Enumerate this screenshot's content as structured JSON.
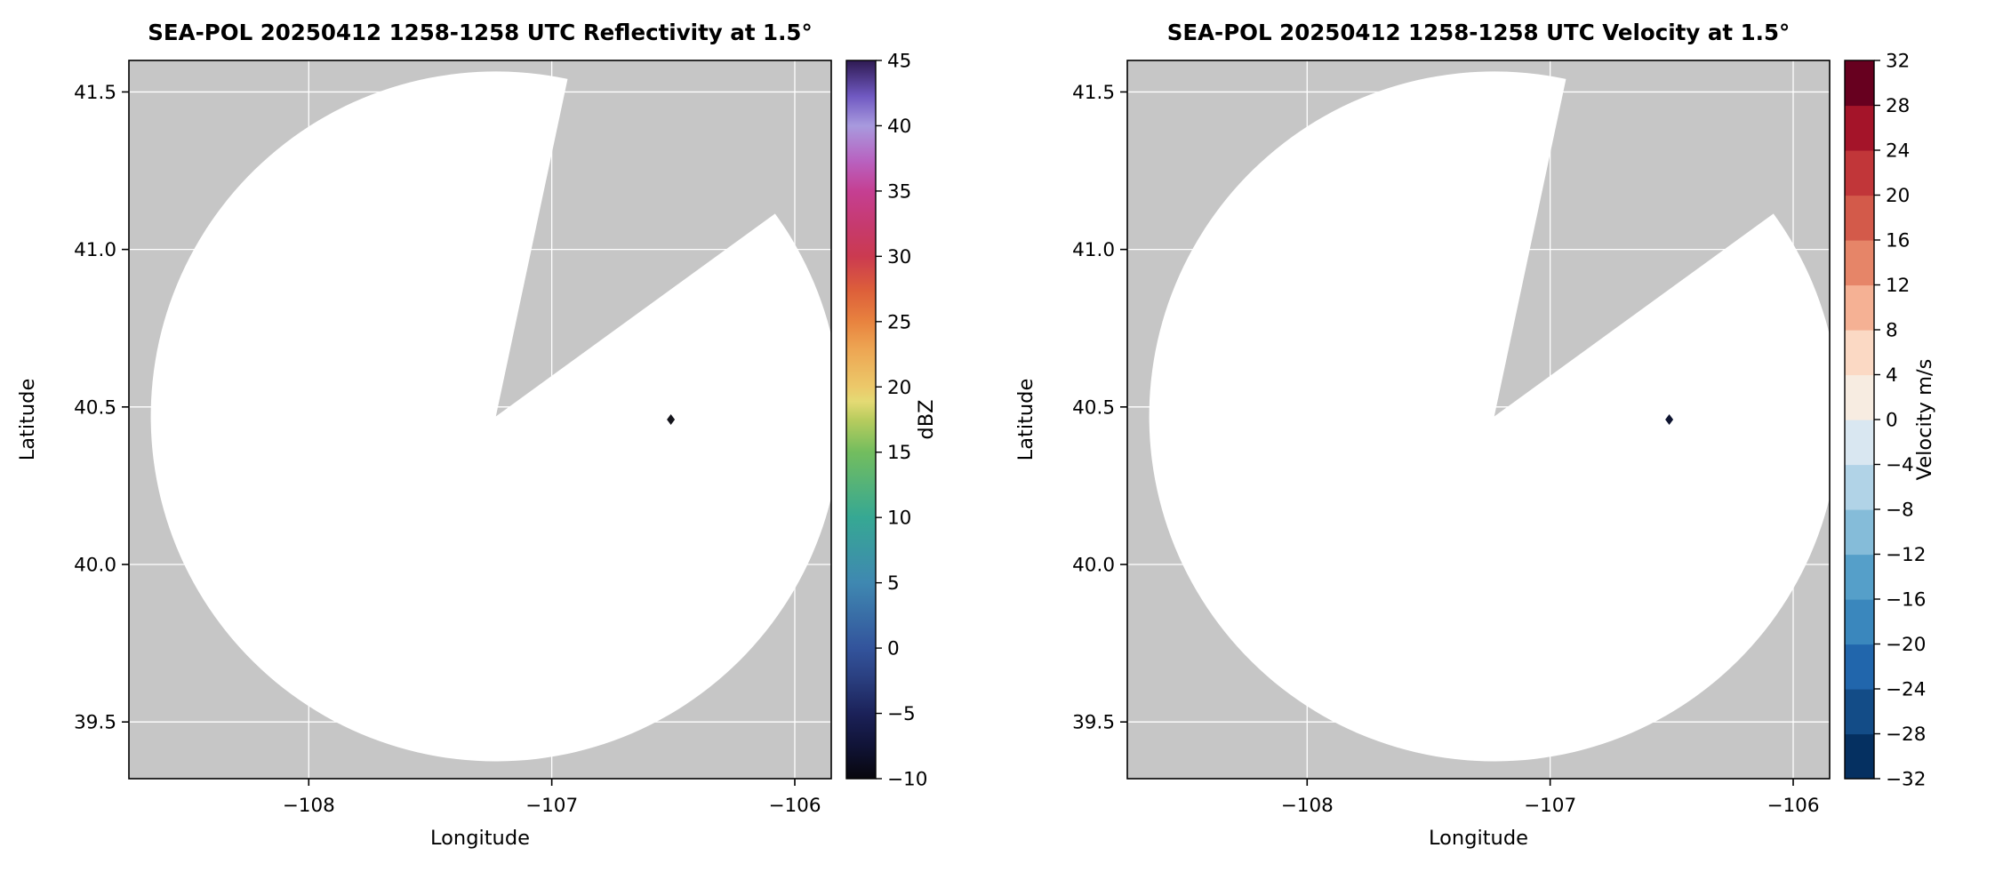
{
  "figure": {
    "background": "#ffffff",
    "description": "Two-panel radar PPI display from SEA-POL radar: reflectivity (left) and radial velocity (right). Scan disk is empty (no echoes) except a single dark marker point; a blanked azimuth sector cuts into the disk from the radar toward the north-northeast."
  },
  "chart_data": [
    {
      "type": "radar_ppi",
      "title": "SEA-POL 20250412 1258-1258 UTC Reflectivity at 1.5°",
      "xlabel": "Longitude",
      "ylabel": "Latitude",
      "xlim": [
        -108.74,
        -105.85
      ],
      "ylim": [
        39.32,
        41.6
      ],
      "x_ticks": [
        -108,
        -107,
        -106
      ],
      "x_tick_labels": [
        "−108",
        "−107",
        "−106"
      ],
      "y_ticks": [
        39.5,
        40.0,
        40.5,
        41.0,
        41.5
      ],
      "y_tick_labels": [
        "39.5",
        "40.0",
        "40.5",
        "41.0",
        "41.5"
      ],
      "grid": true,
      "background_color": "#c6c6c6",
      "scan_fill": "#ffffff",
      "grid_color": "#ffffff",
      "radar": {
        "lon": -107.23,
        "lat": 40.47
      },
      "scan_radius_deg_lon": 1.42,
      "scan_radius_deg_lat": 1.095,
      "blanked_sector_deg": [
        12,
        54
      ],
      "marker": {
        "lon": -106.51,
        "lat": 40.46,
        "color": "#15151c"
      },
      "colorbar": {
        "label": "dBZ",
        "type": "gradient",
        "min": -10,
        "max": 45,
        "ticks": [
          45,
          40,
          35,
          30,
          25,
          20,
          15,
          10,
          5,
          0,
          -5,
          -10
        ],
        "tick_labels": [
          "45",
          "40",
          "35",
          "30",
          "25",
          "20",
          "15",
          "10",
          "5",
          "0",
          "−5",
          "−10"
        ],
        "stops": [
          {
            "pos": 0.0,
            "color": "#08070d"
          },
          {
            "pos": 0.045,
            "color": "#101336"
          },
          {
            "pos": 0.09,
            "color": "#1b2158"
          },
          {
            "pos": 0.14,
            "color": "#2a3f80"
          },
          {
            "pos": 0.182,
            "color": "#33549c"
          },
          {
            "pos": 0.273,
            "color": "#3f88b1"
          },
          {
            "pos": 0.364,
            "color": "#36a893"
          },
          {
            "pos": 0.455,
            "color": "#73bd5e"
          },
          {
            "pos": 0.5,
            "color": "#b8cc5e"
          },
          {
            "pos": 0.525,
            "color": "#e4da74"
          },
          {
            "pos": 0.545,
            "color": "#ecc96a"
          },
          {
            "pos": 0.6,
            "color": "#eda452"
          },
          {
            "pos": 0.636,
            "color": "#e8833f"
          },
          {
            "pos": 0.68,
            "color": "#dd5f3a"
          },
          {
            "pos": 0.727,
            "color": "#cb3a50"
          },
          {
            "pos": 0.77,
            "color": "#c63a6e"
          },
          {
            "pos": 0.818,
            "color": "#c53f92"
          },
          {
            "pos": 0.86,
            "color": "#b862c0"
          },
          {
            "pos": 0.909,
            "color": "#a89ade"
          },
          {
            "pos": 0.95,
            "color": "#7059c2"
          },
          {
            "pos": 1.0,
            "color": "#2e1a52"
          }
        ]
      }
    },
    {
      "type": "radar_ppi",
      "title": "SEA-POL 20250412 1258-1258 UTC Velocity at 1.5°",
      "xlabel": "Longitude",
      "ylabel": "Latitude",
      "xlim": [
        -108.74,
        -105.85
      ],
      "ylim": [
        39.32,
        41.6
      ],
      "x_ticks": [
        -108,
        -107,
        -106
      ],
      "x_tick_labels": [
        "−108",
        "−107",
        "−106"
      ],
      "y_ticks": [
        39.5,
        40.0,
        40.5,
        41.0,
        41.5
      ],
      "y_tick_labels": [
        "39.5",
        "40.0",
        "40.5",
        "41.0",
        "41.5"
      ],
      "grid": true,
      "background_color": "#c6c6c6",
      "scan_fill": "#ffffff",
      "grid_color": "#ffffff",
      "radar": {
        "lon": -107.23,
        "lat": 40.47
      },
      "scan_radius_deg_lon": 1.42,
      "scan_radius_deg_lat": 1.095,
      "blanked_sector_deg": [
        12,
        54
      ],
      "marker": {
        "lon": -106.51,
        "lat": 40.46,
        "color": "#0e1430"
      },
      "colorbar": {
        "label": "Velocity m/s",
        "type": "segments",
        "min": -32,
        "max": 32,
        "ticks": [
          32,
          28,
          24,
          20,
          16,
          12,
          8,
          4,
          0,
          -4,
          -8,
          -12,
          -16,
          -20,
          -24,
          -28,
          -32
        ],
        "tick_labels": [
          "32",
          "28",
          "24",
          "20",
          "16",
          "12",
          "8",
          "4",
          "0",
          "−4",
          "−8",
          "−12",
          "−16",
          "−20",
          "−24",
          "−28",
          "−32"
        ],
        "segment_colors": [
          "#053061",
          "#134c87",
          "#2166ac",
          "#3a87bd",
          "#559fc9",
          "#85bcd9",
          "#b1d3e7",
          "#d9e7f1",
          "#f7ece1",
          "#fbd9c4",
          "#f5b194",
          "#e68568",
          "#d35a4a",
          "#c13639",
          "#a41429",
          "#67001f"
        ]
      }
    }
  ]
}
